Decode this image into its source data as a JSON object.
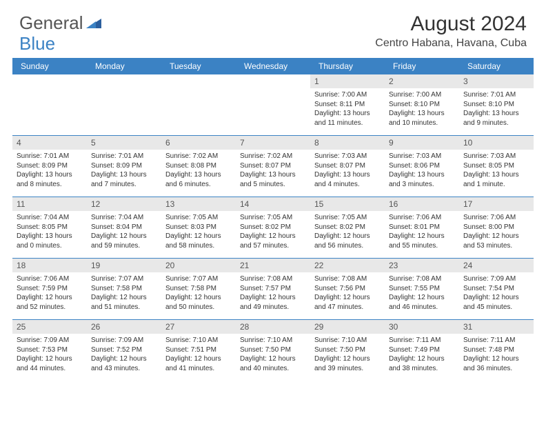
{
  "logo": {
    "text1": "General",
    "text2": "Blue"
  },
  "title": "August 2024",
  "location": "Centro Habana, Havana, Cuba",
  "colors": {
    "header_bg": "#3b82c4",
    "header_text": "#ffffff",
    "daynum_bg": "#e8e8e8",
    "border": "#3b82c4",
    "body_text": "#333333"
  },
  "dayNames": [
    "Sunday",
    "Monday",
    "Tuesday",
    "Wednesday",
    "Thursday",
    "Friday",
    "Saturday"
  ],
  "weeks": [
    [
      null,
      null,
      null,
      null,
      {
        "n": "1",
        "sr": "7:00 AM",
        "ss": "8:11 PM",
        "dl": "13 hours and 11 minutes."
      },
      {
        "n": "2",
        "sr": "7:00 AM",
        "ss": "8:10 PM",
        "dl": "13 hours and 10 minutes."
      },
      {
        "n": "3",
        "sr": "7:01 AM",
        "ss": "8:10 PM",
        "dl": "13 hours and 9 minutes."
      }
    ],
    [
      {
        "n": "4",
        "sr": "7:01 AM",
        "ss": "8:09 PM",
        "dl": "13 hours and 8 minutes."
      },
      {
        "n": "5",
        "sr": "7:01 AM",
        "ss": "8:09 PM",
        "dl": "13 hours and 7 minutes."
      },
      {
        "n": "6",
        "sr": "7:02 AM",
        "ss": "8:08 PM",
        "dl": "13 hours and 6 minutes."
      },
      {
        "n": "7",
        "sr": "7:02 AM",
        "ss": "8:07 PM",
        "dl": "13 hours and 5 minutes."
      },
      {
        "n": "8",
        "sr": "7:03 AM",
        "ss": "8:07 PM",
        "dl": "13 hours and 4 minutes."
      },
      {
        "n": "9",
        "sr": "7:03 AM",
        "ss": "8:06 PM",
        "dl": "13 hours and 3 minutes."
      },
      {
        "n": "10",
        "sr": "7:03 AM",
        "ss": "8:05 PM",
        "dl": "13 hours and 1 minute."
      }
    ],
    [
      {
        "n": "11",
        "sr": "7:04 AM",
        "ss": "8:05 PM",
        "dl": "13 hours and 0 minutes."
      },
      {
        "n": "12",
        "sr": "7:04 AM",
        "ss": "8:04 PM",
        "dl": "12 hours and 59 minutes."
      },
      {
        "n": "13",
        "sr": "7:05 AM",
        "ss": "8:03 PM",
        "dl": "12 hours and 58 minutes."
      },
      {
        "n": "14",
        "sr": "7:05 AM",
        "ss": "8:02 PM",
        "dl": "12 hours and 57 minutes."
      },
      {
        "n": "15",
        "sr": "7:05 AM",
        "ss": "8:02 PM",
        "dl": "12 hours and 56 minutes."
      },
      {
        "n": "16",
        "sr": "7:06 AM",
        "ss": "8:01 PM",
        "dl": "12 hours and 55 minutes."
      },
      {
        "n": "17",
        "sr": "7:06 AM",
        "ss": "8:00 PM",
        "dl": "12 hours and 53 minutes."
      }
    ],
    [
      {
        "n": "18",
        "sr": "7:06 AM",
        "ss": "7:59 PM",
        "dl": "12 hours and 52 minutes."
      },
      {
        "n": "19",
        "sr": "7:07 AM",
        "ss": "7:58 PM",
        "dl": "12 hours and 51 minutes."
      },
      {
        "n": "20",
        "sr": "7:07 AM",
        "ss": "7:58 PM",
        "dl": "12 hours and 50 minutes."
      },
      {
        "n": "21",
        "sr": "7:08 AM",
        "ss": "7:57 PM",
        "dl": "12 hours and 49 minutes."
      },
      {
        "n": "22",
        "sr": "7:08 AM",
        "ss": "7:56 PM",
        "dl": "12 hours and 47 minutes."
      },
      {
        "n": "23",
        "sr": "7:08 AM",
        "ss": "7:55 PM",
        "dl": "12 hours and 46 minutes."
      },
      {
        "n": "24",
        "sr": "7:09 AM",
        "ss": "7:54 PM",
        "dl": "12 hours and 45 minutes."
      }
    ],
    [
      {
        "n": "25",
        "sr": "7:09 AM",
        "ss": "7:53 PM",
        "dl": "12 hours and 44 minutes."
      },
      {
        "n": "26",
        "sr": "7:09 AM",
        "ss": "7:52 PM",
        "dl": "12 hours and 43 minutes."
      },
      {
        "n": "27",
        "sr": "7:10 AM",
        "ss": "7:51 PM",
        "dl": "12 hours and 41 minutes."
      },
      {
        "n": "28",
        "sr": "7:10 AM",
        "ss": "7:50 PM",
        "dl": "12 hours and 40 minutes."
      },
      {
        "n": "29",
        "sr": "7:10 AM",
        "ss": "7:50 PM",
        "dl": "12 hours and 39 minutes."
      },
      {
        "n": "30",
        "sr": "7:11 AM",
        "ss": "7:49 PM",
        "dl": "12 hours and 38 minutes."
      },
      {
        "n": "31",
        "sr": "7:11 AM",
        "ss": "7:48 PM",
        "dl": "12 hours and 36 minutes."
      }
    ]
  ],
  "labels": {
    "sunrise": "Sunrise: ",
    "sunset": "Sunset: ",
    "daylight": "Daylight: "
  }
}
